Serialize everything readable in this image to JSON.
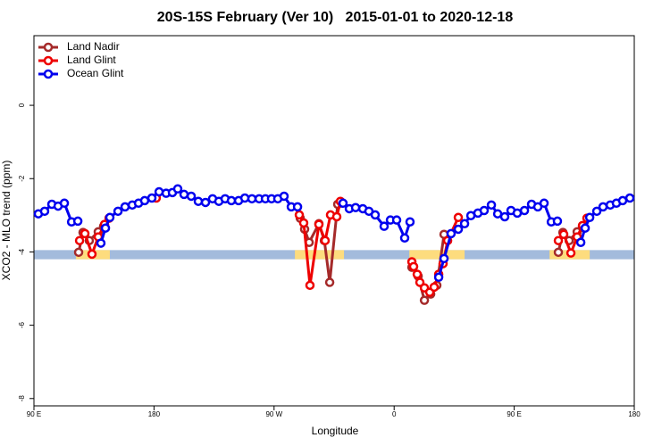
{
  "chart_data": {
    "type": "line",
    "title": "20S-15S February (Ver 10)   2015-01-01 to 2020-12-18",
    "x_label": "Longitude",
    "y_label": "XCO2 - MLO trend (ppm)",
    "xlim": [
      90,
      540
    ],
    "ylim": [
      -8.2,
      1.9
    ],
    "xticks": [
      {
        "value": 90,
        "label": "90 E"
      },
      {
        "value": 180,
        "label": "180"
      },
      {
        "value": 270,
        "label": "90 W"
      },
      {
        "value": 360,
        "label": "0"
      },
      {
        "value": 450,
        "label": "90 E"
      },
      {
        "value": 540,
        "label": "180"
      }
    ],
    "yticks": [
      0,
      -2,
      -4,
      -6,
      -8
    ],
    "legend": "top-left",
    "surface_band": {
      "ylim": [
        -4.2,
        -3.95
      ],
      "ocean_color": "#a3bbdc",
      "land_color": "#fddc7e",
      "land": [
        [
          121.5,
          146.9
        ],
        [
          285.6,
          322.4
        ],
        [
          371.4,
          412.8
        ],
        [
          476.5,
          506.6
        ]
      ]
    },
    "series": [
      {
        "name": "Land Nadir",
        "color": "#a52a2a",
        "x": [
          123.5,
          126.8,
          131.5,
          138.2,
          142.2,
          null,
          289.6,
          292.9,
          296.3,
          303.6,
          307.7,
          311.7,
          317.7,
          null,
          373.3,
          378.0,
          382.7,
          387.4,
          392.0,
          397.4,
          null,
          483.1,
          486.5,
          491.2,
          497.2,
          501.2
        ],
        "values": [
          -4.01,
          -3.47,
          -3.69,
          -3.45,
          -3.3,
          null,
          -3.08,
          -3.38,
          -3.74,
          -3.23,
          -3.69,
          -4.83,
          -2.7,
          null,
          -4.42,
          -4.66,
          -5.32,
          -5.15,
          -4.91,
          -3.52,
          null,
          -4.01,
          -3.47,
          -3.69,
          -3.45,
          -3.33
        ]
      },
      {
        "name": "Land Glint",
        "color": "#ee0000",
        "x": [
          124.2,
          128.2,
          133.5,
          138.2,
          142.9,
          146.3,
          null,
          181.7,
          null,
          288.9,
          292.2,
          296.9,
          303.6,
          308.3,
          312.3,
          317.0,
          319.7,
          null,
          373.3,
          374.6,
          377.3,
          379.3,
          382.7,
          386.7,
          390.0,
          393.4,
          396.7,
          400.1,
          408.1,
          null,
          483.1,
          487.1,
          492.5,
          497.2,
          501.2,
          504.5
        ],
        "values": [
          -3.69,
          -3.5,
          -4.06,
          -3.59,
          -3.25,
          -3.08,
          null,
          -2.53,
          null,
          -2.99,
          -3.21,
          -4.91,
          -3.25,
          -3.69,
          -2.99,
          -3.04,
          -2.62,
          null,
          -4.27,
          -4.4,
          -4.61,
          -4.83,
          -4.98,
          -5.1,
          -4.96,
          -4.61,
          -4.32,
          -3.69,
          -3.06,
          null,
          -3.69,
          -3.52,
          -4.03,
          -3.59,
          -3.28,
          -3.08
        ]
      },
      {
        "name": "Ocean Glint",
        "color": "#0000ee",
        "x": [
          93.3,
          98.0,
          103.4,
          108.1,
          112.8,
          118.2,
          122.9,
          null,
          140.2,
          143.6,
          146.9,
          153.0,
          158.3,
          163.7,
          168.4,
          173.0,
          178.4,
          183.8,
          189.1,
          193.8,
          197.8,
          202.5,
          207.9,
          213.2,
          218.6,
          223.9,
          228.6,
          233.3,
          238.0,
          243.4,
          248.1,
          253.4,
          258.8,
          263.5,
          268.1,
          272.8,
          277.5,
          282.9,
          287.6,
          null,
          321.7,
          326.4,
          331.1,
          336.5,
          341.1,
          345.8,
          352.5,
          357.2,
          361.9,
          367.9,
          371.9,
          null,
          393.4,
          397.4,
          402.7,
          408.1,
          412.8,
          417.5,
          422.8,
          427.5,
          432.9,
          437.6,
          442.9,
          447.6,
          452.3,
          457.7,
          463.0,
          467.7,
          472.4,
          477.8,
          482.4,
          null,
          499.9,
          503.2,
          506.6,
          511.9,
          516.6,
          522.0,
          526.6,
          531.3,
          536.7
        ],
        "values": [
          -2.96,
          -2.89,
          -2.7,
          -2.75,
          -2.67,
          -3.18,
          -3.16,
          null,
          -3.76,
          -3.35,
          -3.06,
          -2.89,
          -2.77,
          -2.72,
          -2.67,
          -2.6,
          -2.53,
          -2.36,
          -2.4,
          -2.38,
          -2.28,
          -2.43,
          -2.48,
          -2.62,
          -2.65,
          -2.55,
          -2.62,
          -2.55,
          -2.6,
          -2.6,
          -2.53,
          -2.55,
          -2.55,
          -2.55,
          -2.55,
          -2.55,
          -2.48,
          -2.77,
          -2.77,
          null,
          -2.67,
          -2.82,
          -2.79,
          -2.82,
          -2.89,
          -2.99,
          -3.3,
          -3.13,
          -3.13,
          -3.62,
          -3.18,
          null,
          -4.69,
          -4.18,
          -3.5,
          -3.38,
          -3.23,
          -3.01,
          -2.94,
          -2.87,
          -2.72,
          -2.96,
          -3.04,
          -2.87,
          -2.94,
          -2.87,
          -2.7,
          -2.77,
          -2.67,
          -3.18,
          -3.16,
          null,
          -3.74,
          -3.35,
          -3.06,
          -2.89,
          -2.77,
          -2.72,
          -2.67,
          -2.6,
          -2.53
        ]
      }
    ]
  }
}
